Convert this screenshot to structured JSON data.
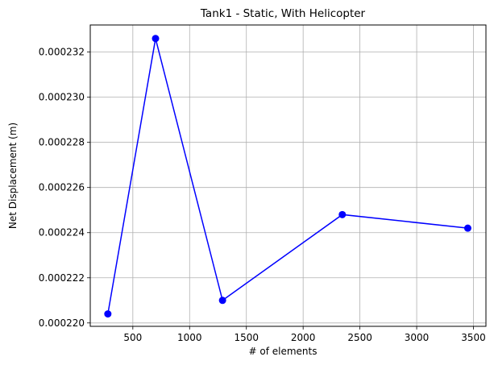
{
  "chart_data": {
    "type": "line",
    "title": "Tank1 - Static, With Helicopter",
    "xlabel": "# of elements",
    "ylabel": "Net Displacement (m)",
    "xlim": [
      125,
      3610
    ],
    "ylim": [
      0.00021985,
      0.0002332
    ],
    "grid": true,
    "line_color": "#0000ff",
    "marker": "circle",
    "xticks": [
      {
        "value": 500,
        "label": "500"
      },
      {
        "value": 1000,
        "label": "1000"
      },
      {
        "value": 1500,
        "label": "1500"
      },
      {
        "value": 2000,
        "label": "2000"
      },
      {
        "value": 2500,
        "label": "2500"
      },
      {
        "value": 3000,
        "label": "3000"
      },
      {
        "value": 3500,
        "label": "3500"
      }
    ],
    "yticks": [
      {
        "value": 0.00022,
        "label": "0.000220"
      },
      {
        "value": 0.000222,
        "label": "0.000222"
      },
      {
        "value": 0.000224,
        "label": "0.000224"
      },
      {
        "value": 0.000226,
        "label": "0.000226"
      },
      {
        "value": 0.000228,
        "label": "0.000228"
      },
      {
        "value": 0.00023,
        "label": "0.000230"
      },
      {
        "value": 0.000232,
        "label": "0.000232"
      }
    ],
    "series": [
      {
        "x": [
          280,
          700,
          1290,
          2345,
          3450
        ],
        "y": [
          0.0002204,
          0.0002326,
          0.000221,
          0.0002248,
          0.0002242
        ]
      }
    ]
  }
}
